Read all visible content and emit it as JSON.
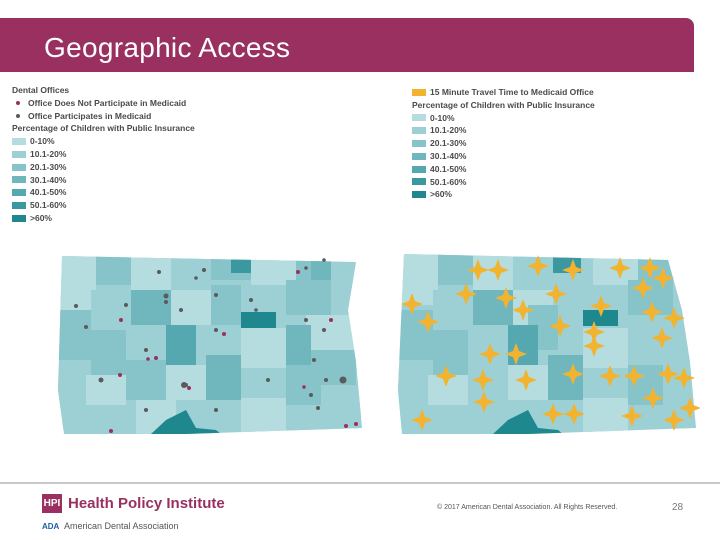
{
  "title": "Geographic Access",
  "colors": {
    "brand": "#99305f",
    "offices_not_medicaid": "#99305f",
    "offices_medicaid": "#5a5a5a",
    "travel": "#f2b331",
    "bins": [
      "#b5dde0",
      "#9dd0d4",
      "#86c4c9",
      "#6fb7bd",
      "#55a8b0",
      "#3b989f",
      "#1f888f"
    ]
  },
  "left_legend": {
    "heading_offices": "Dental Offices",
    "not_participate": "Office Does Not Participate in Medicaid",
    "participate": "Office Participates in Medicaid",
    "heading_children": "Percentage of Children with Public Insurance",
    "bins": [
      "0-10%",
      "10.1-20%",
      "20.1-30%",
      "30.1-40%",
      "40.1-50%",
      "50.1-60%",
      ">60%"
    ]
  },
  "right_legend": {
    "travel": "15 Minute Travel Time to Medicaid Office",
    "heading_children": "Percentage of Children with Public Insurance",
    "bins": [
      "0-10%",
      "10.1-20%",
      "20.1-30%",
      "30.1-40%",
      "40.1-50%",
      "50.1-60%",
      ">60%"
    ]
  },
  "footer": {
    "hpi_mark": "HPI",
    "hpi_name": "Health Policy Institute",
    "ada_mark": "ADA",
    "ada_name": "American Dental Association",
    "copyright": "© 2017 American Dental Association. All Rights Reserved.",
    "page": "28"
  }
}
